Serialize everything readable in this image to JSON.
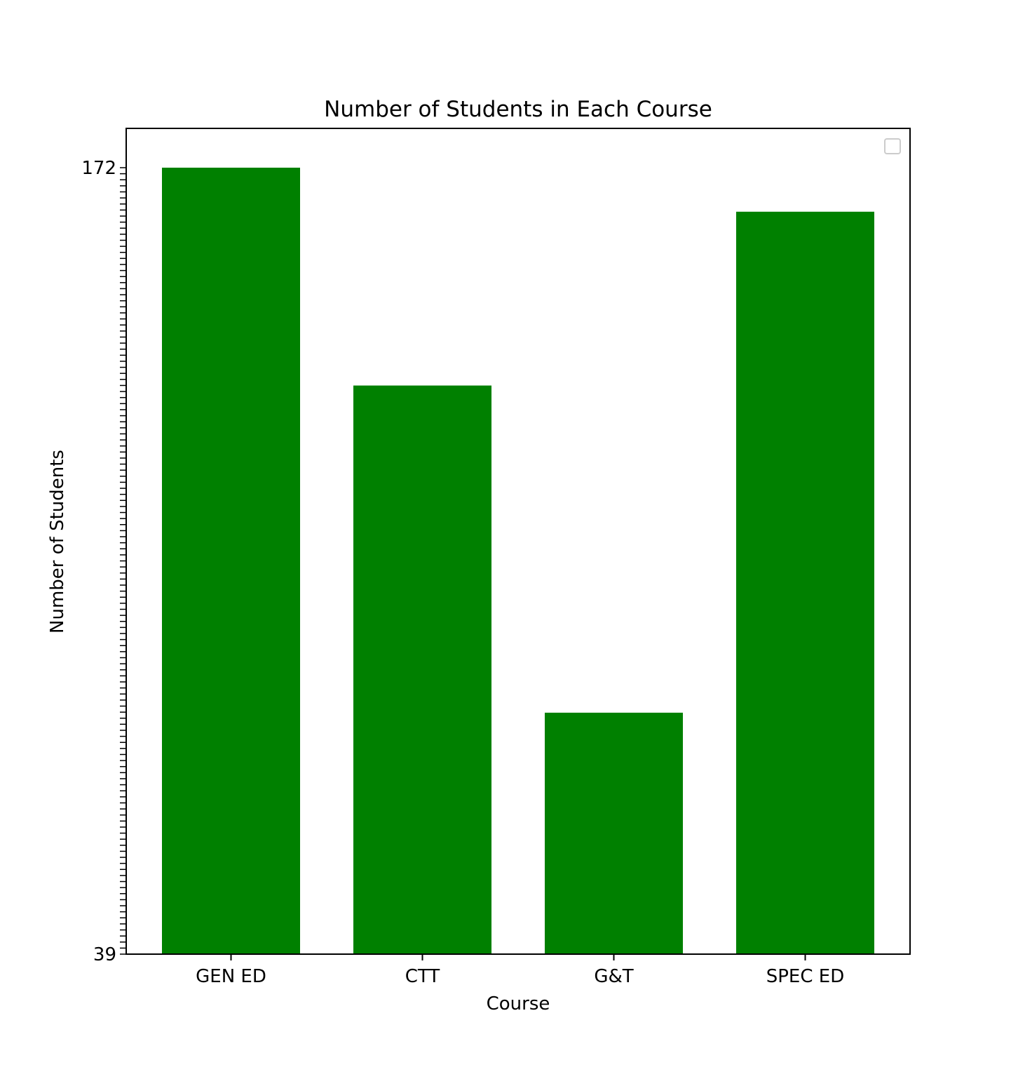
{
  "chart_data": {
    "type": "bar",
    "title": "Number of Students in Each Course",
    "xlabel": "Course",
    "ylabel": "Number of Students",
    "categories": [
      "GEN ED",
      "CTT",
      "G&T",
      "SPEC ED"
    ],
    "values": [
      1,
      0.723,
      0.307,
      0.944
    ],
    "value_note_unit": "fraction of y-axis span (categorical y-axis with overlapping tick labels)",
    "ylim": [
      0,
      1
    ],
    "bar_color": "#008000",
    "legend": {
      "visible": true,
      "entries": [],
      "placement": "top-right"
    },
    "grid": false,
    "yticks_visible_text": {
      "bottom": "39",
      "top": "172"
    }
  }
}
